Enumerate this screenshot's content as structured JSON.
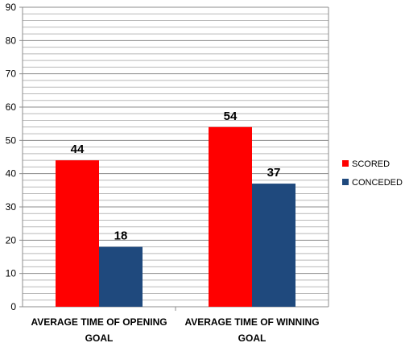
{
  "chart_data": {
    "type": "bar",
    "categories": [
      "AVERAGE TIME OF OPENING GOAL",
      "AVERAGE TIME OF WINNING GOAL"
    ],
    "series": [
      {
        "name": "SCORED",
        "values": [
          44,
          54
        ],
        "color": "#ff0000"
      },
      {
        "name": "CONCEDED",
        "values": [
          18,
          37
        ],
        "color": "#1f497d"
      }
    ],
    "ylim": [
      0,
      90
    ],
    "yticks": [
      0,
      10,
      20,
      30,
      40,
      50,
      60,
      70,
      80,
      90
    ],
    "grid": true,
    "legend_position": "right",
    "data_labels": true
  }
}
